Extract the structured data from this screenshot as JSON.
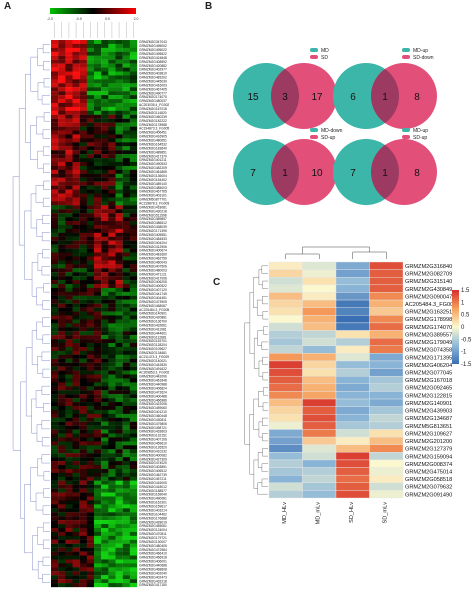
{
  "panel_labels": {
    "a": "A",
    "b": "B",
    "c": "C"
  },
  "chart_data": [
    {
      "panel": "A",
      "type": "heatmap",
      "title": "",
      "colorbar": {
        "colors": [
          "#00c000",
          "#000000",
          "#ff0000"
        ],
        "tick_labels": [
          "-2.0",
          "-0.9",
          "0.9",
          "2.0"
        ]
      },
      "column_count": 12,
      "row_labels": [
        "GRMZM2G347043",
        "GRMZM2G495002",
        "GRMZM2G495022",
        "GRMZM2G495522",
        "GRMZM2G424848",
        "GRMZM2G408592",
        "GRMZM2G420882",
        "GRMZM2G402977",
        "GRMZM2G403810",
        "GRMZM2G483202",
        "GRMZM2G445030",
        "GRMZM2G416003",
        "GRMZM2G467405",
        "GRMZM2G490777",
        "GRMZM2G174070",
        "GRMZM2G480037",
        "AC203035.4_FG002",
        "GRMZM2G167018",
        "GRMZM2G114820",
        "GRMZM2G450239",
        "GRMZM2G182222",
        "GRMZM2G178988",
        "AC194873.3_FG005",
        "GRMZM2G406451",
        "GRMZM2G416905",
        "GRMZM2G480651",
        "GRMZM2G164532",
        "GRMZM2G183640",
        "GRMZM2G489851",
        "GRMZM2G417370",
        "GRMZM2G401211",
        "GRMZM2G490533",
        "GRMZM2G482209",
        "GRMZM2G461865",
        "GRMZM2G136004",
        "GRMZM2G154402",
        "GRMZM2G489140",
        "GRMZM2G485003",
        "GRMZM2G467765",
        "GRMZM2G403101",
        "GRMZM5G877701",
        "AC218878.3_FG003",
        "GRMZM2G418081",
        "GRMZM2G430218",
        "GRMZM2G511598",
        "GRMZM2G389857",
        "GRMZM2G486512",
        "GRMZM2G438039",
        "GRMZM2G171395",
        "GRMZM2G405551",
        "GRMZM2G484533",
        "GRMZM2G404204",
        "GRMZM2G412906",
        "GRMZM2G400674",
        "GRMZM2G481660",
        "GRMZM2G462759",
        "GRMZM2G460043",
        "GRMZM2G407506",
        "GRMZM2G480003",
        "GRMZM2G471121",
        "GRMZM2G417006",
        "GRMZM2G406205",
        "GRMZM2G400522",
        "GRMZM2G407120",
        "GRMZM2G441745",
        "GRMZM2G404451",
        "GRMZM2G473905",
        "GRMZM2G468087",
        "AC225484.3_FG005",
        "GRMZM2G140901",
        "GRMZM2G420881",
        "GRMZM2G136700",
        "GRMZM2G432661",
        "GRMZM2G411981",
        "GRMZM2G444601",
        "GRMZM2G112881",
        "GRMZM2G153701",
        "GRMZM2G128204",
        "GRMZM2G109627",
        "GRMZM2G134681",
        "AC211473.3_FG009",
        "GRMZM2G140021",
        "GRMZM2G442830",
        "GRMZM2G491622",
        "AC209853.3_FG002",
        "GRMZM2G442006",
        "GRMZM2G461848",
        "GRMZM2G440988",
        "GRMZM2G406824",
        "GRMZM2G472624",
        "GRMZM2G400488",
        "GRMZM2G466986",
        "GRMZM2G422006",
        "GRMZM2G459060",
        "GRMZM2G401210",
        "GRMZM2G460448",
        "GRMZM2G430811",
        "GRMZM2G479806",
        "GRMZM2G498721",
        "GRMZM2G433603",
        "GRMZM2G132151",
        "GRMZM2G407106",
        "GRMZM2G459610",
        "GRMZM2G126520",
        "GRMZM2G410232",
        "GRMZM2G400082",
        "GRMZM2G427309",
        "GRMZM2G474020",
        "GRMZM2G403891",
        "GRMZM2G406512",
        "GRMZM2G462739",
        "GRMZM2G457211",
        "GRMZM2G416005",
        "GRMZM2G418012",
        "GRMZM2G188577",
        "GRMZM2G169040",
        "GRMZM2G490081",
        "GRMZM2G162301",
        "GRMZM2G159617",
        "GRMZM2G403214",
        "GRMZM2G104462",
        "GRMZM2G176688",
        "GRMZM2G428019",
        "GRMZM2G455061",
        "GRMZM2G124004",
        "GRMZM2G470811",
        "GRMZM2G179721",
        "GRMZM2G130007",
        "GRMZM2G480405",
        "GRMZM2G472984",
        "GRMZM2G466410",
        "GRMZM2G456918",
        "GRMZM2G406001",
        "GRMZM2G440688",
        "GRMZM2G468808",
        "GRMZM2G402040",
        "GRMZM2G402473",
        "GRMZM2G432218",
        "GRMZM2G417150"
      ]
    },
    {
      "panel": "B",
      "type": "venn",
      "diagrams": [
        {
          "sets": [
            "MD",
            "SD"
          ],
          "counts": [
            15,
            3,
            17
          ]
        },
        {
          "sets": [
            "MD-up",
            "SD-down"
          ],
          "counts": [
            6,
            1,
            8
          ]
        },
        {
          "sets": [
            "MD-down",
            "SD-up"
          ],
          "counts": [
            7,
            1,
            10
          ]
        },
        {
          "sets": [
            "MD-up",
            "SD-up"
          ],
          "counts": [
            7,
            1,
            8
          ]
        }
      ]
    },
    {
      "panel": "C",
      "type": "heatmap",
      "title": "",
      "columns": [
        "MD_HLv",
        "MD_mLv",
        "SD_HLv",
        "SD_mLv"
      ],
      "rows": [
        "GRMZM2G316840",
        "GRMZM2G082709",
        "GRMZM2G315140",
        "GRMZM2G430849",
        "GRMZM2G090047",
        "AC205484.3_FG005",
        "GRMZM2G163251",
        "GRMZM2G178998",
        "GRMZM2G174070",
        "GRMZM2G389557",
        "GRMZM2G179049",
        "GRMZM2G074358",
        "GRMZM2G171395",
        "GRMZM2G406204",
        "GRMZM2G077045",
        "GRMZM2G167018",
        "GRMZM2G092465",
        "GRMZM2G122815",
        "GRMZM2G140901",
        "GRMZM2G439903",
        "GRMZM2G134687",
        "GRMZM5G813651",
        "GRMZM2G109627",
        "GRMZM2G201200",
        "GRMZM2G127379",
        "GRMZM2G159094",
        "GRMZM2G008374",
        "GRMZM2G475014",
        "GRMZM2G058518",
        "GRMZM2G079632",
        "GRMZM2G091490"
      ],
      "values": [
        [
          0.1,
          -0.2,
          -0.9,
          1.3
        ],
        [
          0.3,
          -0.1,
          -1.0,
          1.2
        ],
        [
          -0.3,
          0.2,
          -0.7,
          1.2
        ],
        [
          -0.2,
          0.0,
          -0.8,
          1.2
        ],
        [
          0.5,
          0.1,
          -1.1,
          0.9
        ],
        [
          0.3,
          0.5,
          -1.4,
          0.6
        ],
        [
          0.2,
          0.8,
          -1.3,
          0.4
        ],
        [
          0.0,
          0.6,
          -1.5,
          0.9
        ],
        [
          -0.3,
          0.5,
          -1.4,
          1.1
        ],
        [
          -0.5,
          -0.4,
          0.2,
          0.6
        ],
        [
          -0.6,
          -0.3,
          -0.5,
          1.1
        ],
        [
          -0.4,
          -0.7,
          0.1,
          1.0
        ],
        [
          0.8,
          0.6,
          -0.2,
          -0.9
        ],
        [
          1.4,
          0.3,
          -0.7,
          -0.8
        ],
        [
          1.3,
          0.2,
          -0.5,
          -1.0
        ],
        [
          1.2,
          0.5,
          -0.8,
          -0.6
        ],
        [
          1.1,
          0.6,
          -0.9,
          -0.5
        ],
        [
          0.9,
          0.7,
          -0.8,
          -0.8
        ],
        [
          0.5,
          1.4,
          -0.7,
          -0.9
        ],
        [
          0.3,
          1.2,
          -0.9,
          -0.6
        ],
        [
          0.2,
          1.3,
          -0.8,
          -0.4
        ],
        [
          -0.1,
          1.2,
          -0.6,
          -0.5
        ],
        [
          -0.9,
          1.0,
          -0.3,
          0.2
        ],
        [
          -1.0,
          0.4,
          0.1,
          0.5
        ],
        [
          -1.2,
          -0.2,
          0.5,
          0.9
        ],
        [
          -0.7,
          -0.3,
          1.4,
          -0.4
        ],
        [
          -0.5,
          -0.8,
          1.3,
          0.0
        ],
        [
          -0.6,
          -0.5,
          1.2,
          -0.1
        ],
        [
          -0.8,
          -0.4,
          1.1,
          0.1
        ],
        [
          -0.3,
          -0.6,
          1.2,
          -0.3
        ],
        [
          -0.5,
          -0.7,
          1.3,
          -0.1
        ]
      ],
      "colorbar": {
        "min": -1.5,
        "max": 1.5,
        "ticks": [
          "1.5",
          "1",
          "0.5",
          "0",
          "-0.5",
          "-1",
          "-1.5"
        ]
      }
    }
  ],
  "colors": {
    "venn_left": "#3bb6a8",
    "venn_right": "#e2507a",
    "venn_overlap": "#9c3a62"
  }
}
